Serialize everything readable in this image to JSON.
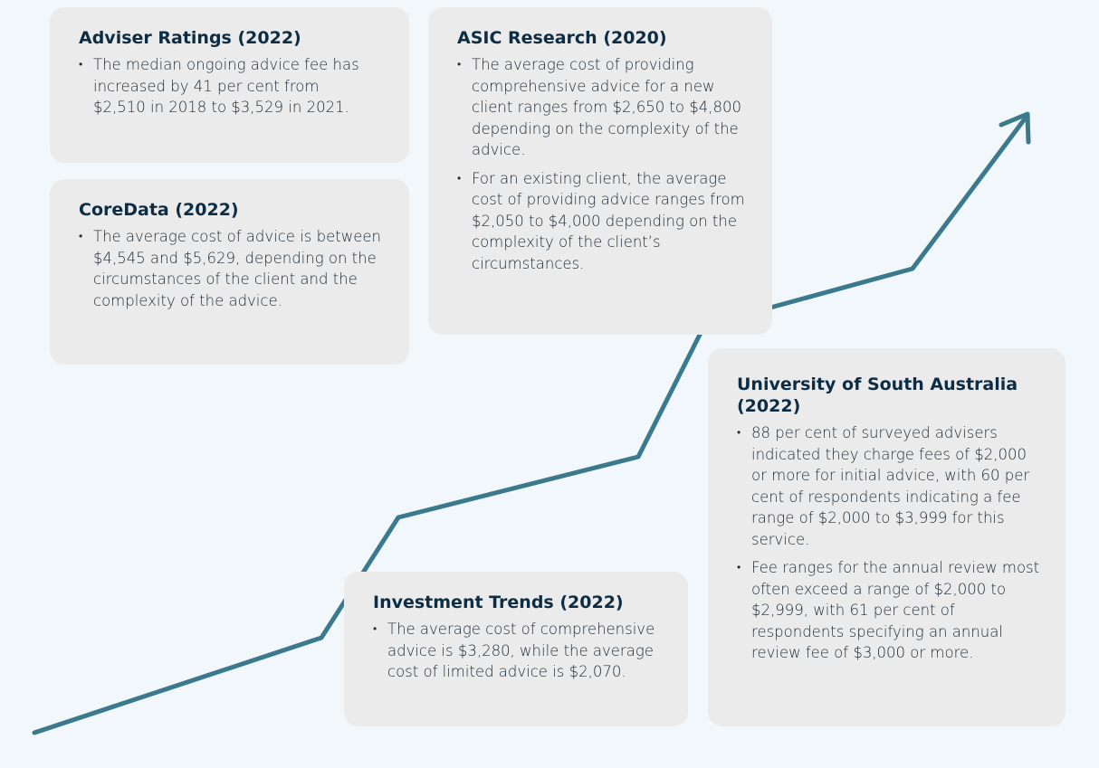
{
  "cards": [
    {
      "title": "Adviser Ratings (2022)",
      "bullets": [
        "The median ongoing advice fee has increased by 41 per cent from $2,510 in 2018 to $3,529 in 2021."
      ]
    },
    {
      "title": "CoreData (2022)",
      "bullets": [
        "The average cost of advice is between $4,545 and $5,629, depending on the circumstances of the client and the complexity of the advice."
      ]
    },
    {
      "title": "ASIC Research (2020)",
      "bullets": [
        "The average cost of providing comprehensive advice for a new client ranges from $2,650 to $4,800 depending on the complexity of the advice.",
        "For an existing client, the average cost of providing advice ranges from $2,050 to $4,000 depending on the complexity of the client’s circumstances."
      ]
    },
    {
      "title": "University of South Australia (2022)",
      "bullets": [
        "88 per cent of surveyed advisers indicated they charge fees of $2,000 or more for initial advice, with 60 per cent of respondents indicating a fee range of $2,000 to $3,999 for this service.",
        "Fee ranges for the annual review most often exceed a range of $2,000 to $2,999, with 61 per cent of respondents specifying an annual review fee of $3,000 or more."
      ]
    },
    {
      "title": "Investment Trends (2022)",
      "bullets": [
        "The average cost of comprehensive advice is $3,280, while the average cost of limited advice is $2,070."
      ]
    }
  ]
}
